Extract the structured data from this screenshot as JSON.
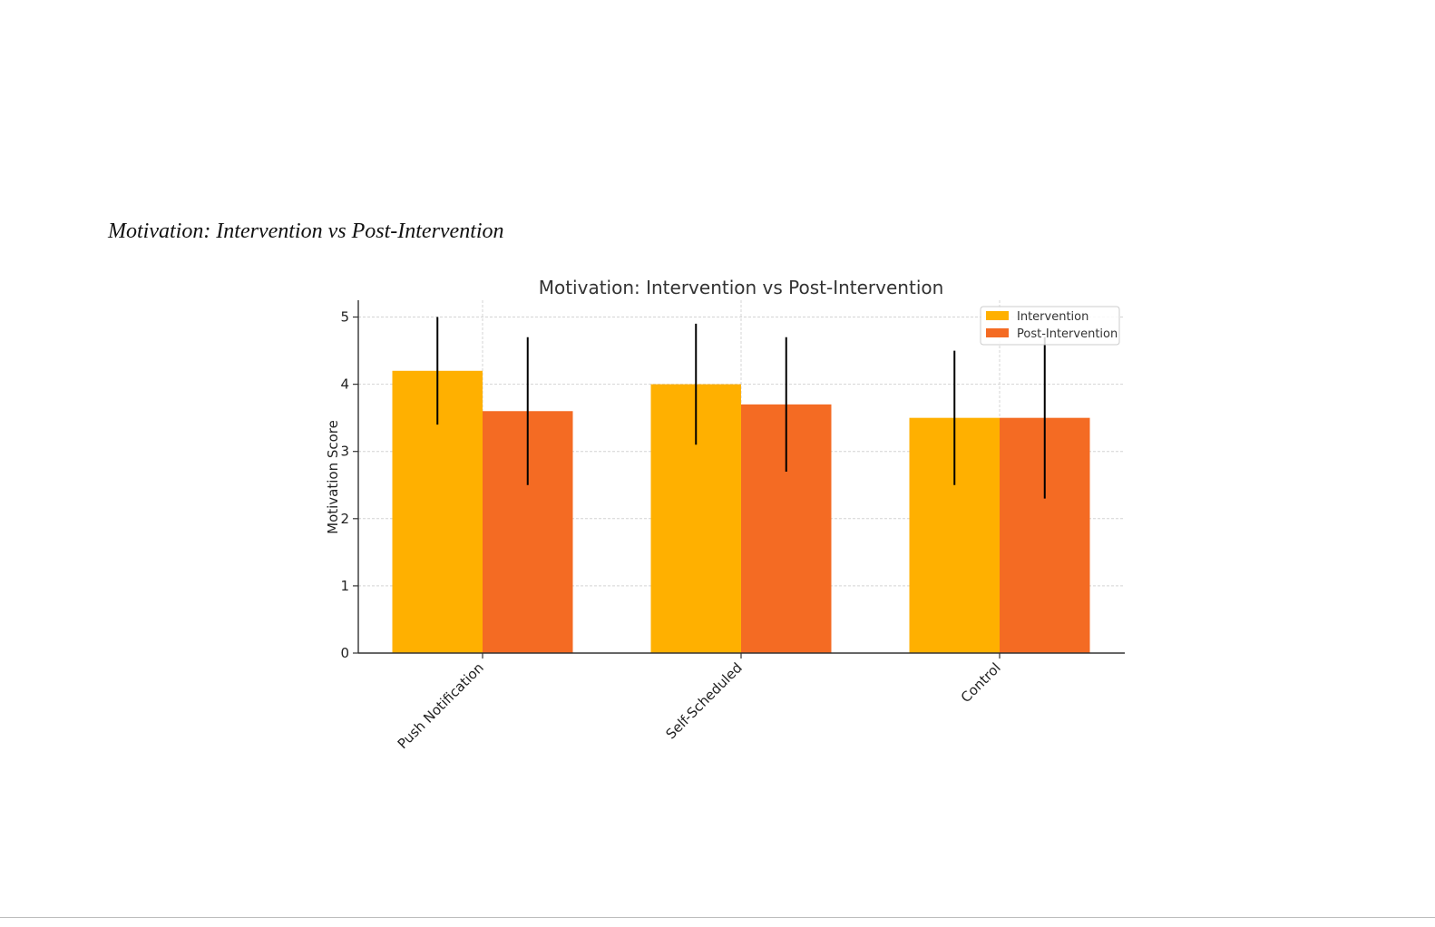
{
  "document": {
    "caption": "Motivation: Intervention vs Post-Intervention"
  },
  "chart_data": {
    "type": "bar",
    "title": "Motivation: Intervention vs Post-Intervention",
    "xlabel": "",
    "ylabel": "Motivation Score",
    "categories": [
      "Push Notification",
      "Self-Scheduled",
      "Control"
    ],
    "series": [
      {
        "name": "Intervention",
        "values": [
          4.2,
          4.0,
          3.5
        ],
        "error": [
          0.8,
          0.9,
          1.0
        ],
        "color": "#FFB000"
      },
      {
        "name": "Post-Intervention",
        "values": [
          3.6,
          3.7,
          3.5
        ],
        "error": [
          1.1,
          1.0,
          1.2
        ],
        "color": "#F46B23"
      }
    ],
    "ylim": [
      0,
      5.25
    ],
    "yticks": [
      0,
      1,
      2,
      3,
      4,
      5
    ],
    "grid": true,
    "legend": "top-right"
  }
}
